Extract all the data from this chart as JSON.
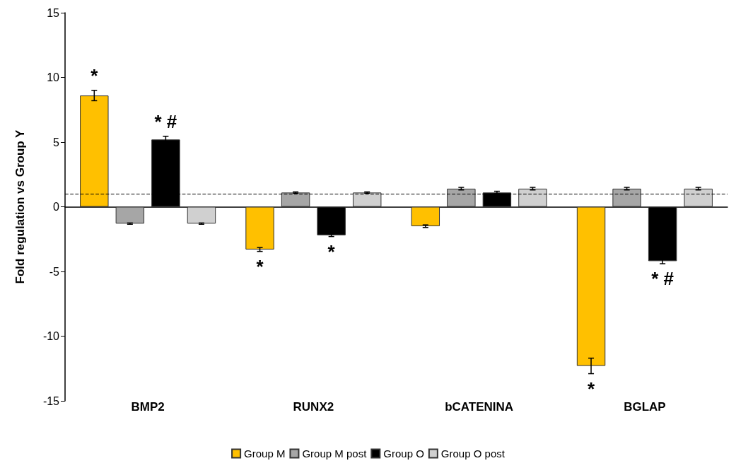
{
  "chart_data": {
    "type": "bar",
    "ylabel": "Fold regulation vs Group Y",
    "categories": [
      "BMP2",
      "RUNX2",
      "bCATENINA",
      "BGLAP"
    ],
    "series": [
      {
        "name": "Group M",
        "color": "#ffc000",
        "values": [
          8.6,
          -3.3,
          -1.5,
          -12.3
        ],
        "errors": [
          0.4,
          0.15,
          0.1,
          0.6
        ],
        "value_labels": [
          "*",
          "*",
          null,
          "*"
        ]
      },
      {
        "name": "Group M post",
        "color": "#a6a6a6",
        "values": [
          -1.3,
          1.1,
          1.4,
          1.4
        ],
        "errors": [
          0.05,
          0.05,
          0.1,
          0.1
        ]
      },
      {
        "name": "Group O",
        "color": "#000000",
        "values": [
          5.2,
          -2.2,
          1.1,
          -4.2
        ],
        "errors": [
          0.25,
          0.1,
          0.1,
          0.2
        ],
        "value_labels": [
          "* #",
          "*",
          null,
          "* #"
        ]
      },
      {
        "name": "Group O post",
        "color": "#d0d0d0",
        "values": [
          -1.3,
          1.1,
          1.4,
          1.4
        ],
        "errors": [
          0.05,
          0.05,
          0.1,
          0.1
        ]
      }
    ],
    "ylim": [
      -15,
      15
    ],
    "yticks": [
      -15,
      -10,
      -5,
      0,
      5,
      10,
      15
    ],
    "ref_lines": [
      {
        "axis": "y",
        "value": 1,
        "line_style": "dashed",
        "color": "#000000"
      }
    ],
    "legend": "bottom"
  }
}
